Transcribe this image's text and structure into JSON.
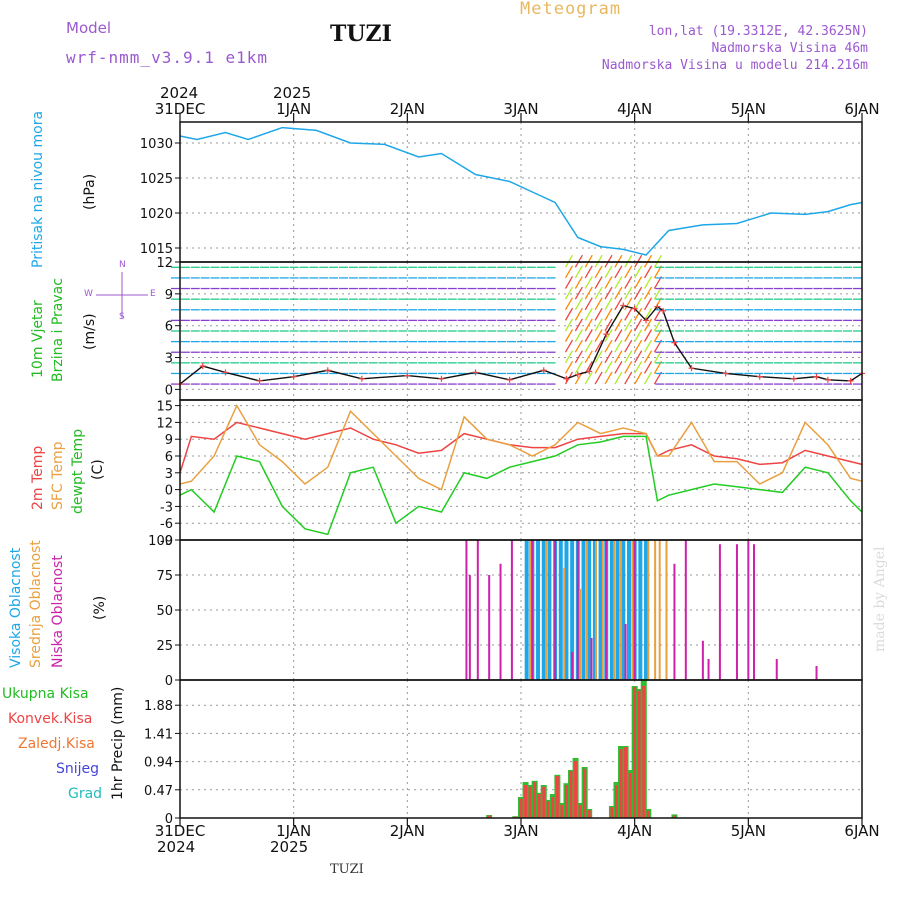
{
  "header": {
    "model_label": "Model",
    "model_name": "wrf-nmm_v3.9.1  e1km",
    "station": "TUZI",
    "title": "Meteogram",
    "coords": "lon,lat (19.3312E, 42.3625N)",
    "elev_real": "Nadmorska Visina 46m",
    "elev_model": "Nadmorska Visina u modelu 214.216m",
    "footer_station": "TUZI",
    "watermark": "made by Angel",
    "year_2024": "2024",
    "year_2025": "2025"
  },
  "colors": {
    "pressure": "#1ea7e8",
    "temp2m": "#ee4444",
    "sfctemp": "#e8a040",
    "dewpt": "#22cc22",
    "high_cloud": "#1ea7e8",
    "mid_cloud": "#e8a040",
    "low_cloud": "#cc22aa",
    "total_precip": "#33bb33",
    "conv_precip": "#ee4444",
    "legend_violet": "#9b59d0"
  },
  "time_axis": {
    "labels": [
      "31DEC",
      "1JAN",
      "2JAN",
      "3JAN",
      "4JAN",
      "5JAN",
      "6JAN"
    ]
  },
  "panel_labels": {
    "pressure": [
      "Pritisak na nivou mora"
    ],
    "pressure_unit": "(hPa)",
    "wind": [
      "10m Vjetar",
      "Brzina i Pravac"
    ],
    "wind_unit": "(m/s)",
    "wind_compass": {
      "n": "N",
      "s": "S",
      "e": "E",
      "w": "W"
    },
    "temp": [
      "2m Temp",
      "SFC Temp",
      "dewpt Temp"
    ],
    "temp_unit": "(C)",
    "cloud": [
      "Visoka Oblacnost",
      "Srednja Oblacnost",
      "Niska Oblacnost"
    ],
    "cloud_unit": "(%)",
    "precip_legend": [
      "Ukupna Kisa",
      "Konvek.Kisa",
      "Zaledj.Kisa",
      "Snijeg",
      "Grad"
    ],
    "precip_unit": "1hr Precip (mm)"
  },
  "chart_data": [
    {
      "type": "line",
      "id": "pressure",
      "ylabel": "(hPa)",
      "yticks": [
        1015,
        1020,
        1025,
        1030
      ],
      "ylim": [
        1013,
        1033
      ],
      "x": [
        0,
        0.15,
        0.4,
        0.6,
        0.9,
        1.2,
        1.5,
        1.8,
        2.1,
        2.3,
        2.6,
        2.9,
        3.1,
        3.3,
        3.5,
        3.7,
        3.9,
        4.1,
        4.3,
        4.6,
        4.9,
        5.2,
        5.5,
        5.7,
        5.9,
        6.0
      ],
      "series": [
        {
          "values": [
            1031,
            1030.5,
            1031.5,
            1030.5,
            1032.2,
            1031.8,
            1030,
            1029.8,
            1028,
            1028.5,
            1025.5,
            1024.5,
            1023,
            1021.5,
            1016.5,
            1015.2,
            1014.8,
            1014,
            1017.5,
            1018.3,
            1018.5,
            1020,
            1019.8,
            1020.2,
            1021.2,
            1021.5
          ]
        }
      ]
    },
    {
      "type": "line",
      "id": "wind",
      "ylabel": "(m/s)",
      "yticks": [
        0,
        3,
        6,
        9,
        12
      ],
      "ylim": [
        -1,
        12
      ],
      "x": [
        0,
        0.2,
        0.4,
        0.7,
        1.0,
        1.3,
        1.6,
        2.0,
        2.3,
        2.6,
        2.9,
        3.2,
        3.4,
        3.5,
        3.6,
        3.75,
        3.9,
        4.0,
        4.1,
        4.2,
        4.25,
        4.35,
        4.5,
        4.8,
        5.1,
        5.4,
        5.6,
        5.7,
        5.9,
        6.0
      ],
      "series": [
        {
          "values": [
            0.5,
            2.2,
            1.6,
            0.8,
            1.2,
            1.8,
            1.0,
            1.3,
            1.0,
            1.6,
            0.9,
            1.8,
            1.0,
            1.4,
            1.7,
            5.2,
            7.9,
            7.6,
            6.5,
            7.8,
            7.4,
            4.4,
            2.0,
            1.5,
            1.2,
            1.0,
            1.2,
            0.9,
            0.8,
            1.5
          ]
        }
      ]
    },
    {
      "type": "line",
      "id": "temperature",
      "ylabel": "(C)",
      "yticks": [
        -9,
        -6,
        -3,
        0,
        3,
        6,
        9,
        12,
        15
      ],
      "ylim": [
        -9,
        16
      ],
      "x": [
        0,
        0.1,
        0.3,
        0.5,
        0.7,
        0.9,
        1.1,
        1.3,
        1.5,
        1.7,
        1.9,
        2.1,
        2.3,
        2.5,
        2.7,
        2.9,
        3.1,
        3.3,
        3.5,
        3.7,
        3.9,
        4.1,
        4.2,
        4.3,
        4.5,
        4.7,
        4.9,
        5.1,
        5.3,
        5.5,
        5.7,
        5.9,
        6.0
      ],
      "series": [
        {
          "name": "2m Temp",
          "values": [
            3,
            9.5,
            9,
            12,
            11,
            10,
            9,
            10,
            11,
            9,
            8,
            6.5,
            7,
            10,
            9,
            8,
            7.5,
            7.5,
            9,
            9.5,
            10,
            10,
            6,
            7,
            8,
            6,
            5.5,
            4.5,
            4.8,
            7,
            6,
            5,
            4.5
          ]
        },
        {
          "name": "SFC Temp",
          "values": [
            1,
            1.5,
            6,
            15,
            8,
            5,
            1,
            4,
            14,
            10,
            6,
            2,
            0,
            13,
            9,
            8,
            6,
            8,
            12,
            10,
            11,
            10,
            6,
            6,
            12,
            5,
            5,
            1,
            3,
            12,
            8,
            2,
            1.5
          ]
        },
        {
          "name": "dewpt Temp",
          "values": [
            -1,
            0,
            -4,
            6,
            5,
            -3,
            -7,
            -8,
            3,
            4,
            -6,
            -3,
            -4,
            3,
            2,
            4,
            5,
            6,
            8,
            8.5,
            9.5,
            9.5,
            -2,
            -1,
            0,
            1,
            0.5,
            0,
            -0.5,
            4,
            3,
            -2,
            -4
          ]
        }
      ]
    },
    {
      "type": "bar",
      "id": "cloud",
      "ylabel": "(%)",
      "yticks": [
        0,
        25,
        50,
        75,
        100
      ],
      "ylim": [
        0,
        100
      ],
      "series": [
        {
          "name": "Visoka Oblacnost",
          "x": [
            3.05,
            3.1,
            3.15,
            3.2,
            3.25,
            3.3,
            3.35,
            3.4,
            3.45,
            3.5,
            3.55,
            3.6,
            3.65,
            3.7,
            3.75,
            3.8,
            3.85,
            3.9,
            3.95,
            4.0,
            4.05,
            4.1
          ],
          "values": [
            100,
            100,
            100,
            100,
            100,
            100,
            100,
            100,
            100,
            100,
            100,
            100,
            100,
            100,
            100,
            100,
            100,
            100,
            100,
            100,
            100,
            100
          ]
        },
        {
          "name": "Srednja Oblacnost",
          "x": [
            3.08,
            3.22,
            3.38,
            3.52,
            3.58,
            3.66,
            3.72,
            3.82,
            3.88,
            3.98,
            4.12,
            4.18,
            4.22,
            4.28
          ],
          "values": [
            100,
            100,
            80,
            65,
            100,
            100,
            100,
            100,
            100,
            100,
            100,
            100,
            100,
            100
          ]
        },
        {
          "name": "Niska Oblacnost",
          "x": [
            2.52,
            2.55,
            2.62,
            2.72,
            2.82,
            2.92,
            3.1,
            3.3,
            3.45,
            3.5,
            3.62,
            3.75,
            3.92,
            4.0,
            4.35,
            4.45,
            4.6,
            4.65,
            4.75,
            4.9,
            5.0,
            5.05,
            5.25,
            5.6
          ],
          "values": [
            100,
            75,
            100,
            75,
            83,
            100,
            100,
            100,
            20,
            100,
            30,
            100,
            40,
            100,
            83,
            100,
            28,
            15,
            97,
            97,
            100,
            97,
            15,
            10
          ]
        }
      ]
    },
    {
      "type": "bar",
      "id": "precip",
      "ylabel": "1hr Precip (mm)",
      "yticks": [
        0,
        0.47,
        0.94,
        1.41,
        1.88
      ],
      "ylim": [
        0,
        2.3
      ],
      "x": [
        2.72,
        2.95,
        3.0,
        3.04,
        3.08,
        3.12,
        3.16,
        3.2,
        3.24,
        3.28,
        3.32,
        3.36,
        3.4,
        3.44,
        3.48,
        3.52,
        3.56,
        3.6,
        3.8,
        3.84,
        3.88,
        3.92,
        3.96,
        4.0,
        4.04,
        4.08,
        4.12,
        4.35
      ],
      "series": [
        {
          "name": "Ukupna Kisa",
          "values": [
            0.05,
            0.03,
            0.35,
            0.6,
            0.55,
            0.62,
            0.42,
            0.55,
            0.3,
            0.4,
            0.72,
            0.25,
            0.58,
            0.8,
            1.0,
            0.25,
            0.85,
            0.15,
            0.2,
            0.6,
            1.2,
            1.2,
            0.8,
            2.2,
            2.15,
            2.32,
            0.15,
            0.06
          ]
        },
        {
          "name": "Konvek.Kisa",
          "values": [
            0.04,
            0.02,
            0.32,
            0.55,
            0.52,
            0.6,
            0.4,
            0.52,
            0.28,
            0.35,
            0.7,
            0.22,
            0.55,
            0.78,
            0.95,
            0.22,
            0.82,
            0.13,
            0.18,
            0.55,
            1.15,
            1.18,
            0.75,
            2.18,
            2.12,
            2.2,
            0.12,
            0.04
          ]
        }
      ]
    }
  ]
}
